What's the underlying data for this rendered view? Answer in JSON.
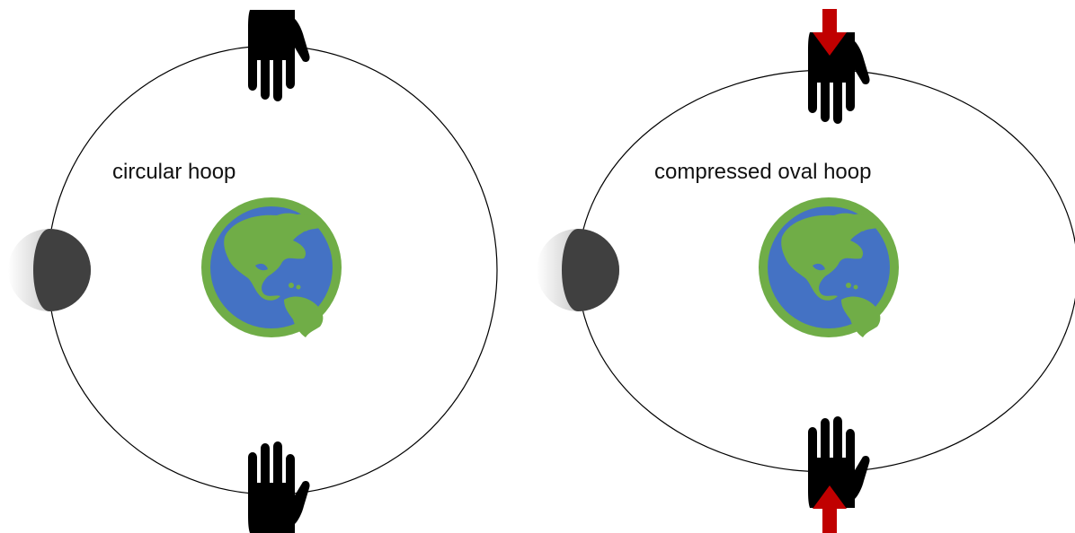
{
  "panels": [
    {
      "label": "circular hoop"
    },
    {
      "label": "compressed oval hoop"
    }
  ],
  "colors": {
    "hoop": "#000000",
    "hand": "#000000",
    "arrow": "#c00000",
    "earth_ocean": "#4472c4",
    "earth_land": "#70ad47",
    "moon_dark": "#404040",
    "moon_light": "#e6e6e6"
  },
  "icons": [
    "hand-icon",
    "earth-icon",
    "moon-icon",
    "arrow-down-icon",
    "arrow-up-icon"
  ]
}
